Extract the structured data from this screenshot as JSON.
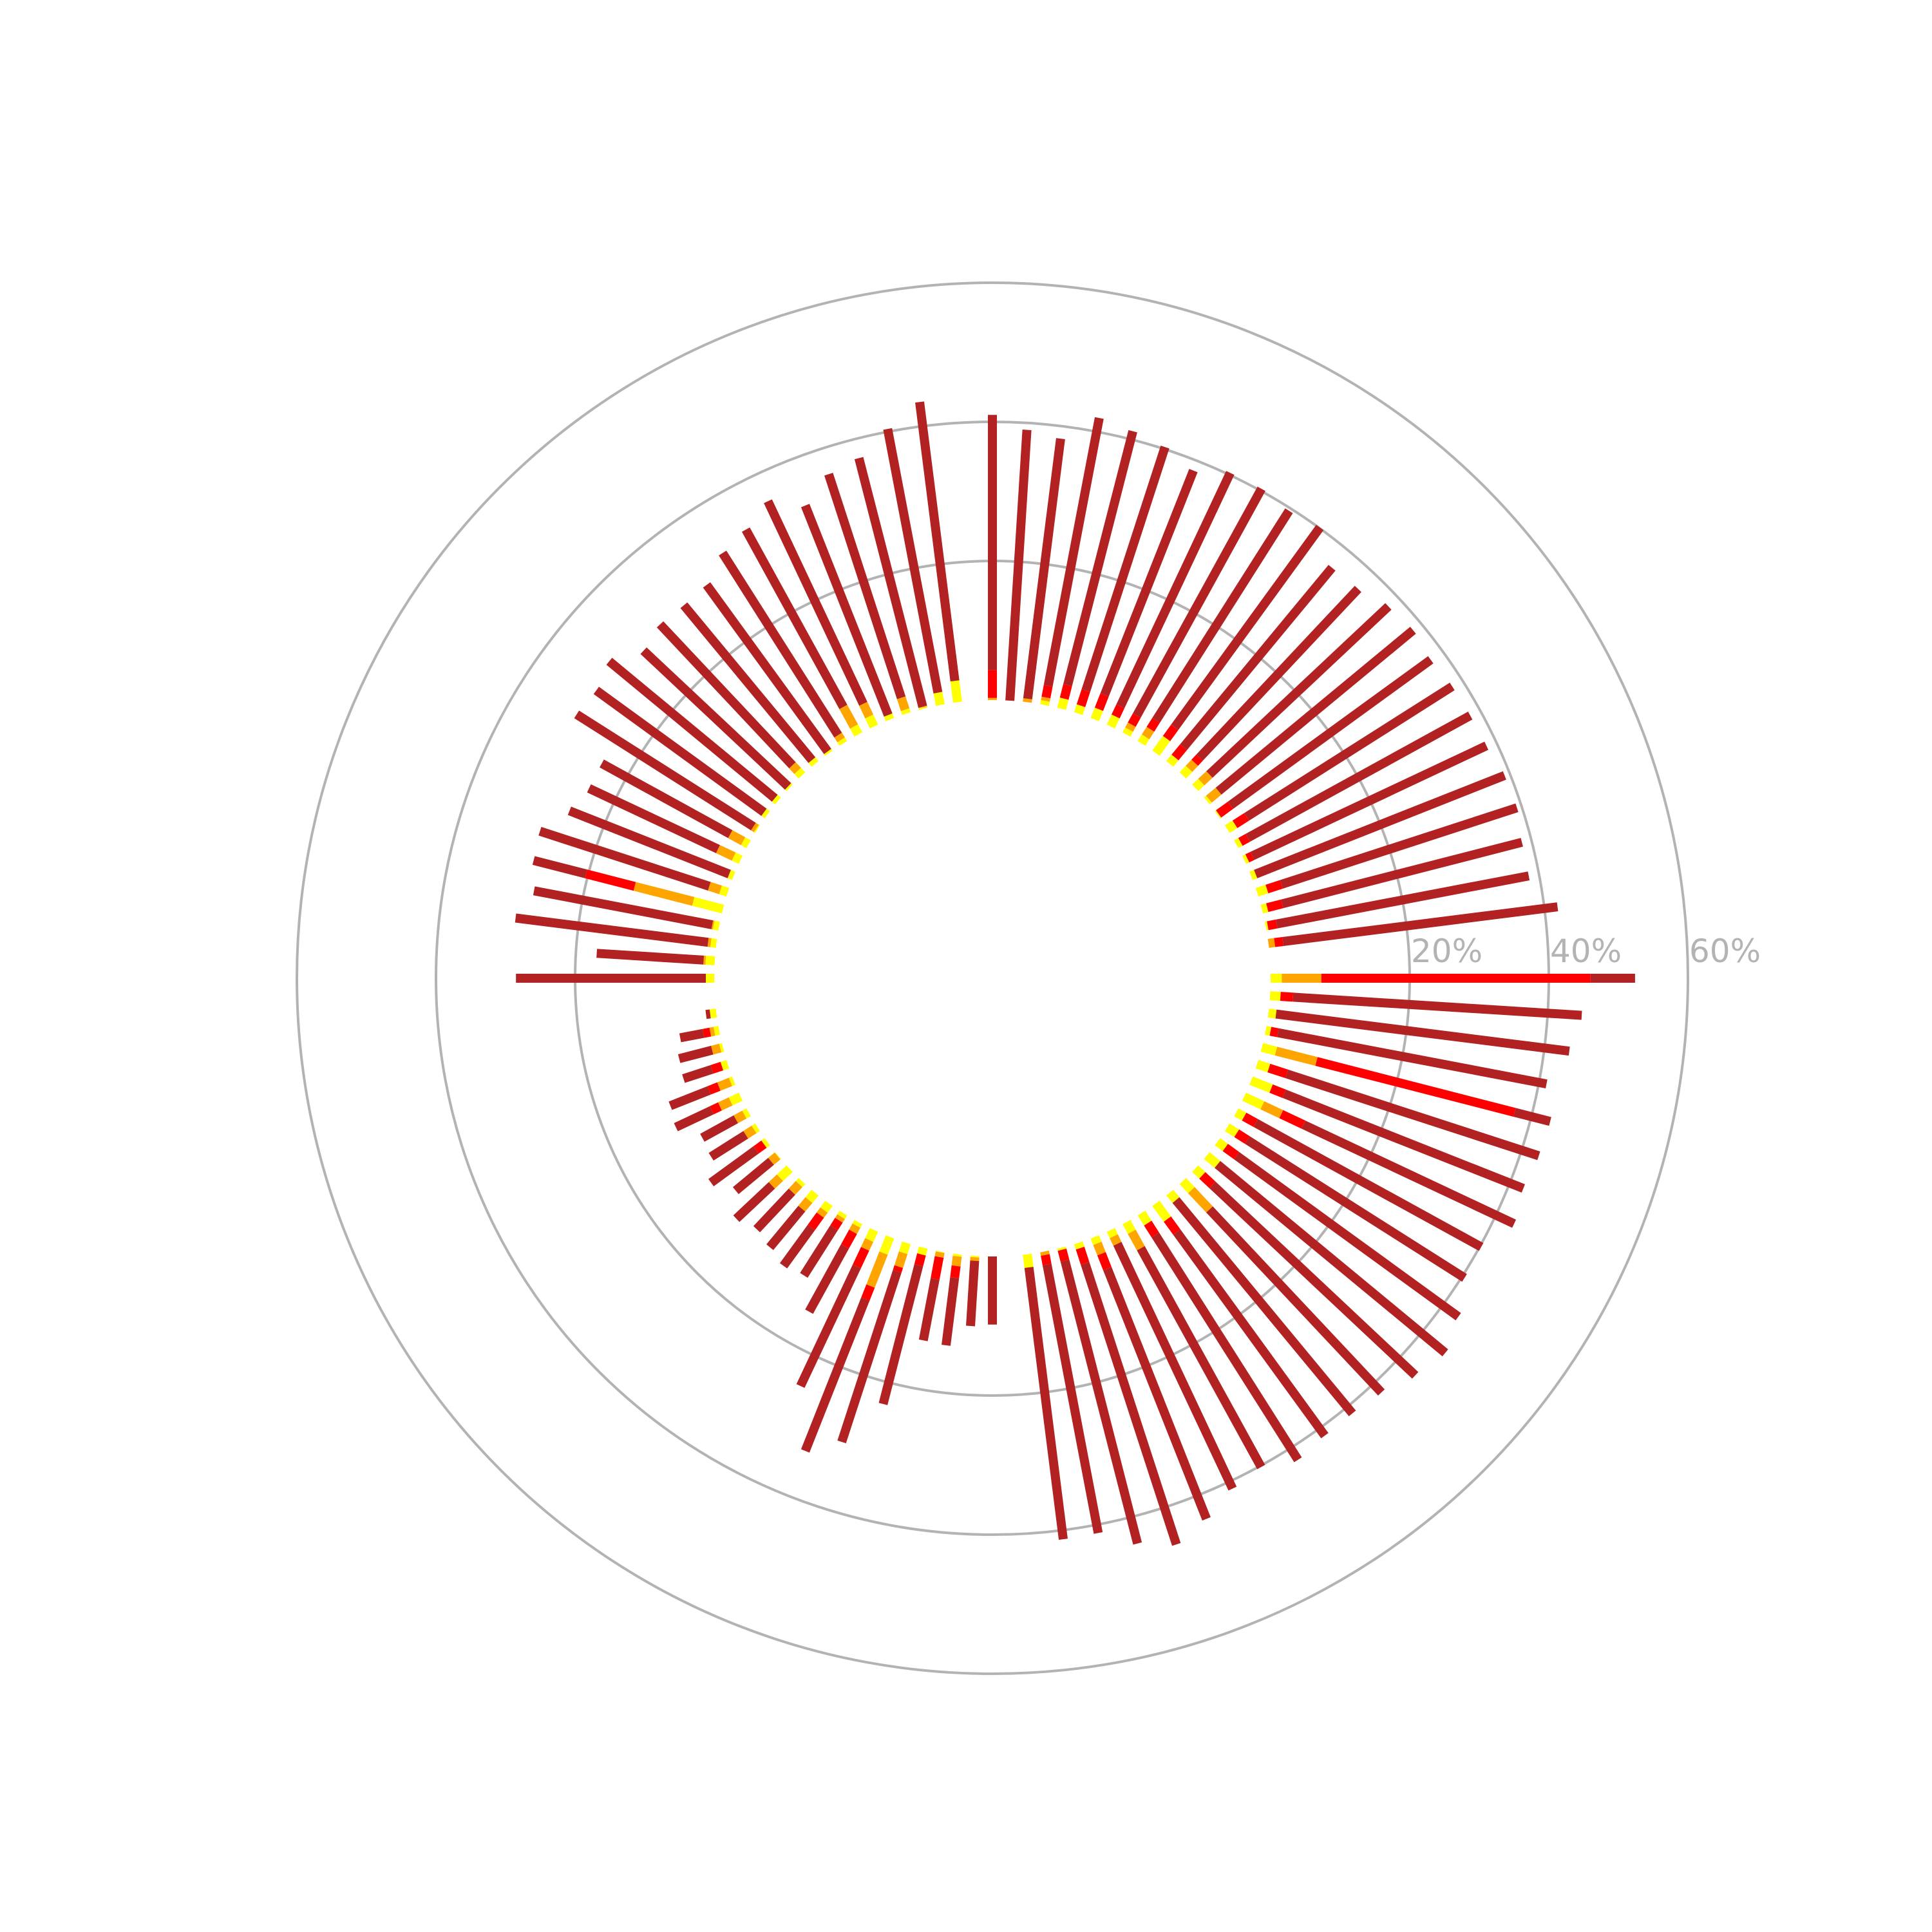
{
  "chart_data": {
    "type": "bar",
    "subtype": "circular-stacked-bar",
    "radial_ticks": [
      20,
      40,
      60
    ],
    "radial_tick_labels": [
      "20%",
      "40%",
      "60%"
    ],
    "rlim": [
      -40,
      60
    ],
    "grid": true,
    "colors": {
      "yellow": "#ffff00",
      "orange": "#ffa500",
      "red": "#ff0000",
      "darkred": "#b22222",
      "grid": "#b3b3b3",
      "tick_label": "#b3b3b3"
    },
    "groups": [
      {
        "sector": "top-right",
        "bars": [
          {
            "s": [
              0,
              0.3,
              4.3,
              41
            ]
          },
          {
            "s": [
              0,
              0,
              0,
              39
            ]
          },
          {
            "s": [
              0,
              0.5,
              0.5,
              38.2
            ]
          },
          {
            "s": [
              0.6,
              1.1,
              2.8,
              42
            ]
          },
          {
            "s": [
              1.5,
              1.5,
              3.5,
              41.2
            ]
          },
          {
            "s": [
              1.2,
              1.2,
              3.5,
              40.3
            ]
          },
          {
            "s": [
              1.6,
              1.6,
              3.8,
              38.5
            ]
          },
          {
            "s": [
              1.6,
              1.6,
              3.2,
              40.3
            ]
          },
          {
            "s": [
              0.8,
              1.6,
              3.1,
              40.3
            ]
          },
          {
            "s": [
              1.1,
              2.4,
              3.9,
              39.6
            ]
          },
          {
            "s": [
              2.6,
              2.6,
              4.6,
              40.1
            ]
          },
          {
            "s": [
              1.2,
              1.2,
              3.1,
              36.6
            ]
          },
          {
            "s": [
              1.3,
              2.5,
              3.5,
              36.8
            ]
          },
          {
            "s": [
              1.2,
              2.8,
              2.8,
              38.1
            ]
          },
          {
            "s": [
              0.4,
              2.2,
              2.2,
              38.5
            ]
          },
          {
            "s": [
              0.2,
              0.2,
              2.3,
              37.9
            ]
          },
          {
            "s": [
              1.3,
              1.3,
              3.3,
              38.3
            ]
          },
          {
            "s": [
              0.7,
              0.7,
              1.9,
              38.4
            ]
          },
          {
            "s": [
              0.5,
              0.5,
              1.3,
              38.5
            ]
          },
          {
            "s": [
              0.7,
              0.7,
              0.7,
              39.2
            ]
          },
          {
            "s": [
              1.5,
              1.5,
              3.7,
              39.3
            ]
          },
          {
            "s": [
              0.8,
              0.8,
              3.0,
              38.6
            ]
          },
          {
            "s": [
              0.3,
              0.3,
              1.6,
              38.5
            ]
          },
          {
            "s": [
              0,
              0.9,
              2.1,
              41.9
            ]
          }
        ]
      },
      {
        "sector": "bottom-right",
        "bars": [
          {
            "s": [
              1.6,
              7.3,
              46.0,
              52.4
            ]
          },
          {
            "s": [
              1.5,
              1.5,
              3.3,
              44.9
            ]
          },
          {
            "s": [
              1.1,
              1.1,
              1.1,
              43.6
            ]
          },
          {
            "s": [
              0.7,
              0.7,
              1.8,
              41.1
            ]
          },
          {
            "s": [
              2.1,
              8.1,
              37.5,
              42.8
            ]
          },
          {
            "s": [
              1.8,
              1.8,
              4.5,
              42.6
            ]
          },
          {
            "s": [
              3.1,
              3.1,
              5.1,
              42.1
            ]
          },
          {
            "s": [
              2.9,
              5.9,
              9.4,
              42.9
            ]
          },
          {
            "s": [
              1.3,
              1.3,
              3.2,
              40.2
            ]
          },
          {
            "s": [
              1.6,
              1.6,
              3.4,
              40.4
            ]
          },
          {
            "s": [
              1.4,
              1.4,
              3.4,
              42.8
            ]
          },
          {
            "s": [
              2.0,
              2.0,
              2.0,
              44.5
            ]
          },
          {
            "s": [
              1.4,
              1.4,
              3.4,
              43.4
            ]
          },
          {
            "s": [
              1.8,
              5.6,
              5.6,
              41.7
            ]
          },
          {
            "s": [
              1.4,
              1.4,
              1.4,
              41.2
            ]
          },
          {
            "s": [
              2.8,
              2.8,
              5.1,
              41.3
            ]
          },
          {
            "s": [
              1.7,
              1.7,
              3.7,
              42.0
            ]
          },
          {
            "s": [
              1.6,
              4.3,
              4.3,
              40.2
            ]
          },
          {
            "s": [
              1.0,
              2.2,
              2.2,
              41.1
            ]
          },
          {
            "s": [
              1.0,
              2.6,
              4.9,
              43.6
            ]
          },
          {
            "s": [
              0.8,
              0.8,
              3.1,
              45.6
            ]
          },
          {
            "s": [
              0.3,
              0.3,
              1.9,
              43.9
            ]
          },
          {
            "s": [
              0,
              0.5,
              1.9,
              41.2
            ]
          },
          {
            "s": [
              1.9,
              1.9,
              1.9,
              41.3
            ]
          }
        ]
      },
      {
        "sector": "bottom-left",
        "bars": [
          {
            "s": [
              0,
              0,
              0,
              9.8
            ]
          },
          {
            "s": [
              0.2,
              0.7,
              0.7,
              10.1
            ]
          },
          {
            "s": [
              0.3,
              1.7,
              3.4,
              13.2
            ]
          },
          {
            "s": [
              0.1,
              0.8,
              4.0,
              13.0
            ]
          },
          {
            "s": [
              1.0,
              1.0,
              2.6,
              23.2
            ]
          },
          {
            "s": [
              1.5,
              3.6,
              4.3,
              30.1
            ]
          },
          {
            "s": [
              2.5,
              7.6,
              9.6,
              33.1
            ]
          },
          {
            "s": [
              1.6,
              3.0,
              5.8,
              24.8
            ]
          },
          {
            "s": [
              0.6,
              1.6,
              4.0,
              14.7
            ]
          },
          {
            "s": [
              0.6,
              1.2,
              2.5,
              10.6
            ]
          },
          {
            "s": [
              1.2,
              2.1,
              4.3,
              11.1
            ]
          },
          {
            "s": [
              1.4,
              3.0,
              3.0,
              10.2
            ]
          },
          {
            "s": [
              0.6,
              2.1,
              2.1,
              9.5
            ]
          },
          {
            "s": [
              1.9,
              3.5,
              3.5,
              10.5
            ]
          },
          {
            "s": [
              0.1,
              1.3,
              1.3,
              7.9
            ]
          },
          {
            "s": [
              0.6,
              0.6,
              2.0,
              10.0
            ]
          },
          {
            "s": [
              0.6,
              2.0,
              2.0,
              7.9
            ]
          },
          {
            "s": [
              0.7,
              2.1,
              2.1,
              7.6
            ]
          },
          {
            "s": [
              1.6,
              3.3,
              4.6,
              10.3
            ]
          },
          {
            "s": [
              0.5,
              2.3,
              3.8,
              9.8
            ]
          },
          {
            "s": [
              0.9,
              0.9,
              2.4,
              6.7
            ]
          },
          {
            "s": [
              0.4,
              1.6,
              1.6,
              6.5
            ]
          },
          {
            "s": [
              0.7,
              1.3,
              2.3,
              5.7
            ]
          },
          {
            "s": [
              0.9,
              0.9,
              0.9,
              1.5
            ]
          }
        ]
      },
      {
        "sector": "top-left",
        "bars": [
          {
            "s": [
              1.2,
              1.2,
              1.2,
              28.5
            ]
          },
          {
            "s": [
              1.3,
              1.6,
              1.6,
              17.0
            ]
          },
          {
            "s": [
              0.8,
              1.2,
              1.2,
              29.1
            ]
          },
          {
            "s": [
              0.8,
              1.0,
              1.0,
              27.1
            ]
          },
          {
            "s": [
              4.4,
              13.1,
              20.3,
              28.1
            ]
          },
          {
            "s": [
              1.1,
              2.8,
              2.8,
              28.4
            ]
          },
          {
            "s": [
              0.7,
              0.7,
              0.7,
              25.4
            ]
          },
          {
            "s": [
              1.1,
              3.6,
              3.6,
              24.1
            ]
          },
          {
            "s": [
              0.9,
              3.0,
              3.0,
              24.1
            ]
          },
          {
            "s": [
              0.2,
              0.7,
              0.7,
              30.8
            ]
          },
          {
            "s": [
              0.6,
              0.6,
              0.6,
              30.4
            ]
          },
          {
            "s": [
              0.6,
              0.6,
              0.6,
              31.5
            ]
          },
          {
            "s": [
              0.3,
              0.3,
              0.3,
              28.8
            ]
          },
          {
            "s": [
              0.9,
              2.0,
              2.0,
              29.8
            ]
          },
          {
            "s": [
              0.7,
              0.7,
              0.7,
              29.6
            ]
          },
          {
            "s": [
              0.3,
              0.3,
              0.3,
              29.9
            ]
          },
          {
            "s": [
              0.6,
              1.4,
              1.4,
              32.4
            ]
          },
          {
            "s": [
              1.3,
              4.5,
              4.5,
              33.6
            ]
          },
          {
            "s": [
              1.6,
              3.6,
              3.6,
              35.8
            ]
          },
          {
            "s": [
              0.7,
              0.7,
              0.7,
              33.1
            ]
          },
          {
            "s": [
              0.6,
              2.4,
              2.4,
              36.2
            ]
          },
          {
            "s": [
              0.2,
              0.3,
              0.3,
              37.2
            ]
          },
          {
            "s": [
              1.8,
              1.8,
              1.8,
              40.4
            ]
          },
          {
            "s": [
              3.1,
              3.1,
              3.1,
              43.5
            ]
          }
        ]
      }
    ]
  }
}
